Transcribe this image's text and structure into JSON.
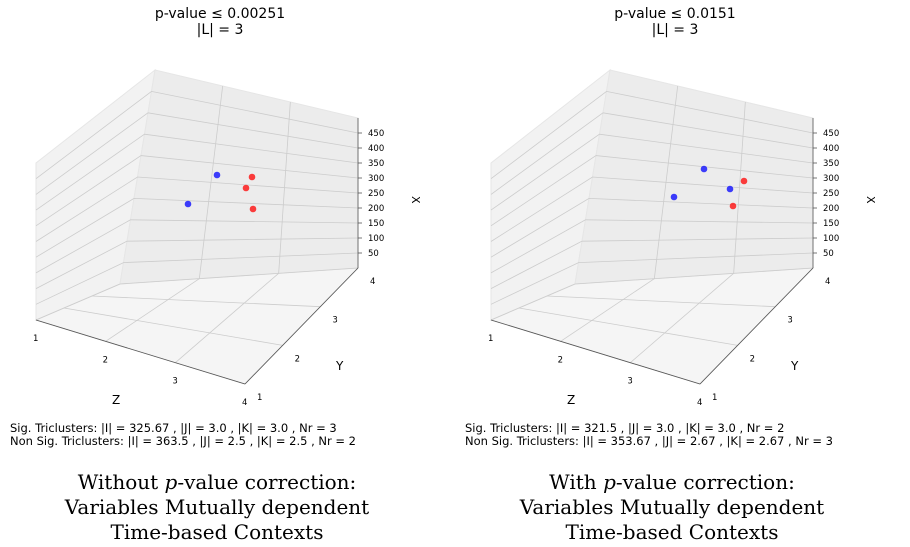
{
  "panels": [
    {
      "title_line1": "p-value ≤ 0.00251",
      "title_line2": "|L| = 3",
      "stats_line1": "Sig. Triclusters: |I| = 325.67 , |J| = 3.0 , |K| = 3.0 , Nr = 3",
      "stats_line2": "Non Sig. Triclusters: |I| = 363.5 , |J| = 2.5 , |K| = 2.5 , Nr = 2",
      "caption_prefix": "Without ",
      "caption_italic": "p",
      "caption_suffix": "-value correction:",
      "caption_line2": "Variables Mutually dependent",
      "caption_line3": "Time-based Contexts"
    },
    {
      "title_line1": "p-value ≤ 0.0151",
      "title_line2": "|L| = 3",
      "stats_line1": "Sig. Triclusters: |I| = 321.5 , |J| = 3.0 , |K| = 3.0 , Nr = 2",
      "stats_line2": "Non Sig. Triclusters: |I| = 353.67 , |J| = 2.67 , |K| = 2.67 , Nr = 3",
      "caption_prefix": "With ",
      "caption_italic": "p",
      "caption_suffix": "-value correction:",
      "caption_line2": "Variables Mutually dependent",
      "caption_line3": "Time-based Contexts"
    }
  ],
  "chart_data": [
    {
      "type": "scatter",
      "projection": "3d",
      "axis_labels": {
        "x": "X",
        "y": "Y",
        "z": "Z"
      },
      "x_ticks": [
        "50",
        "100",
        "150",
        "200",
        "250",
        "300",
        "350",
        "400",
        "450"
      ],
      "y_ticks": [
        "1",
        "2",
        "3",
        "4"
      ],
      "z_ticks": [
        "1",
        "2",
        "3",
        "4"
      ],
      "series": [
        {
          "color": "#ff0000",
          "points": [
            {
              "x": 320,
              "y": 2.5,
              "z": 2.5
            },
            {
              "x": 290,
              "y": 2.5,
              "z": 2.5
            },
            {
              "x": 230,
              "y": 2.5,
              "z": 2.5
            }
          ]
        },
        {
          "color": "#0000ff",
          "points": [
            {
              "x": 345,
              "y": 2.5,
              "z": 2.5
            },
            {
              "x": 210,
              "y": 2.5,
              "z": 2.5
            }
          ]
        }
      ]
    },
    {
      "type": "scatter",
      "projection": "3d",
      "axis_labels": {
        "x": "X",
        "y": "Y",
        "z": "Z"
      },
      "x_ticks": [
        "50",
        "100",
        "150",
        "200",
        "250",
        "300",
        "350",
        "400",
        "450"
      ],
      "y_ticks": [
        "1",
        "2",
        "3",
        "4"
      ],
      "z_ticks": [
        "1",
        "2",
        "3",
        "4"
      ],
      "series": [
        {
          "color": "#ff0000",
          "points": [
            {
              "x": 305,
              "y": 2.5,
              "z": 2.5
            },
            {
              "x": 240,
              "y": 2.5,
              "z": 2.5
            }
          ]
        },
        {
          "color": "#0000ff",
          "points": [
            {
              "x": 355,
              "y": 2.5,
              "z": 2.5
            },
            {
              "x": 295,
              "y": 2.5,
              "z": 2.5
            },
            {
              "x": 255,
              "y": 2.5,
              "z": 2.5
            }
          ]
        }
      ]
    }
  ]
}
